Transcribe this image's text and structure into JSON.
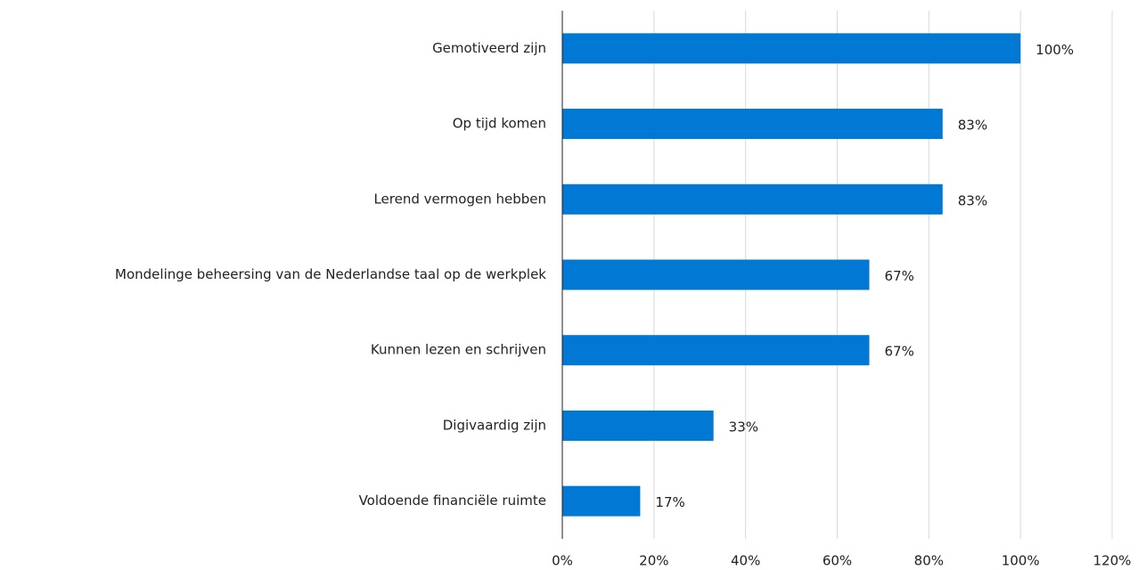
{
  "chart_data": {
    "type": "bar",
    "orientation": "horizontal",
    "categories": [
      "Gemotiveerd zijn",
      "Op tijd komen",
      "Lerend vermogen hebben",
      "Mondelinge beheersing van de Nederlandse taal op de werkplek",
      "Kunnen lezen en schrijven",
      "Digivaardig zijn",
      "Voldoende financiële ruimte"
    ],
    "values": [
      100,
      83,
      83,
      67,
      67,
      33,
      17
    ],
    "value_labels": [
      "100%",
      "83%",
      "83%",
      "67%",
      "67%",
      "33%",
      "17%"
    ],
    "color": "#0078d4",
    "xlim": [
      0,
      120
    ],
    "xticks": [
      {
        "value": 0,
        "label": "0%"
      },
      {
        "value": 20,
        "label": "20%"
      },
      {
        "value": 40,
        "label": "40%"
      },
      {
        "value": 60,
        "label": "60%"
      },
      {
        "value": 80,
        "label": "80%"
      },
      {
        "value": 100,
        "label": "100%"
      },
      {
        "value": 120,
        "label": "120%"
      }
    ],
    "grid": true
  }
}
